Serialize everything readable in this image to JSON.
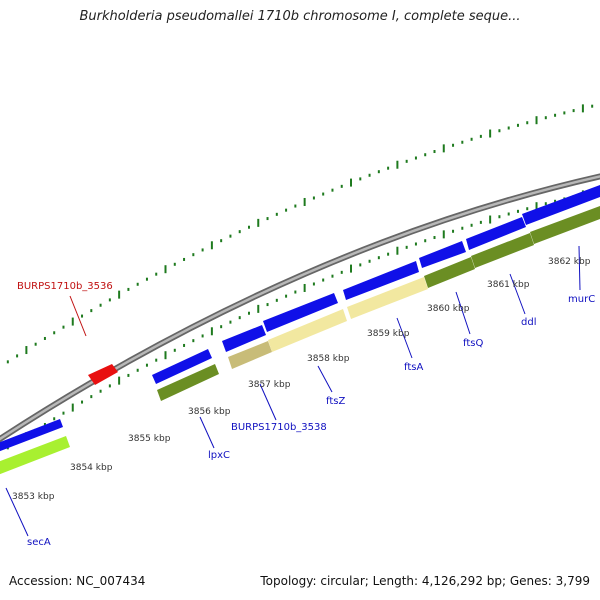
{
  "header": {
    "title": "Burkholderia pseudomallei 1710b chromosome I, complete seque..."
  },
  "footer": {
    "accession": "Accession: NC_007434",
    "summary": "Topology: circular; Length: 4,126,292 bp; Genes: 3,799"
  },
  "colors": {
    "forward_cds": "#1010e8",
    "highlight_cds": "#e81010",
    "green_dark": "#6b8e23",
    "green_light": "#a8f030",
    "yellow": "#f2e8a0",
    "tan": "#c8bc78",
    "backbone": "#888888",
    "tick": "#1e7a1e",
    "gene_label": "#1010c0",
    "highlight_label": "#c01010",
    "kbp_label": "#333333"
  },
  "ruler": [
    {
      "label": "3853 kbp"
    },
    {
      "label": "3854 kbp"
    },
    {
      "label": "3855 kbp"
    },
    {
      "label": "3856 kbp"
    },
    {
      "label": "3857 kbp"
    },
    {
      "label": "3858 kbp"
    },
    {
      "label": "3859 kbp"
    },
    {
      "label": "3860 kbp"
    },
    {
      "label": "3861 kbp"
    },
    {
      "label": "3862 kbp"
    }
  ],
  "genes": [
    {
      "name": "secA"
    },
    {
      "name": "lpxC"
    },
    {
      "name": "BURPS1710b_3538"
    },
    {
      "name": "ftsZ"
    },
    {
      "name": "ftsA"
    },
    {
      "name": "ftsQ"
    },
    {
      "name": "ddl"
    },
    {
      "name": "murC"
    }
  ],
  "highlight_gene": {
    "name": "BURPS1710b_3536"
  }
}
